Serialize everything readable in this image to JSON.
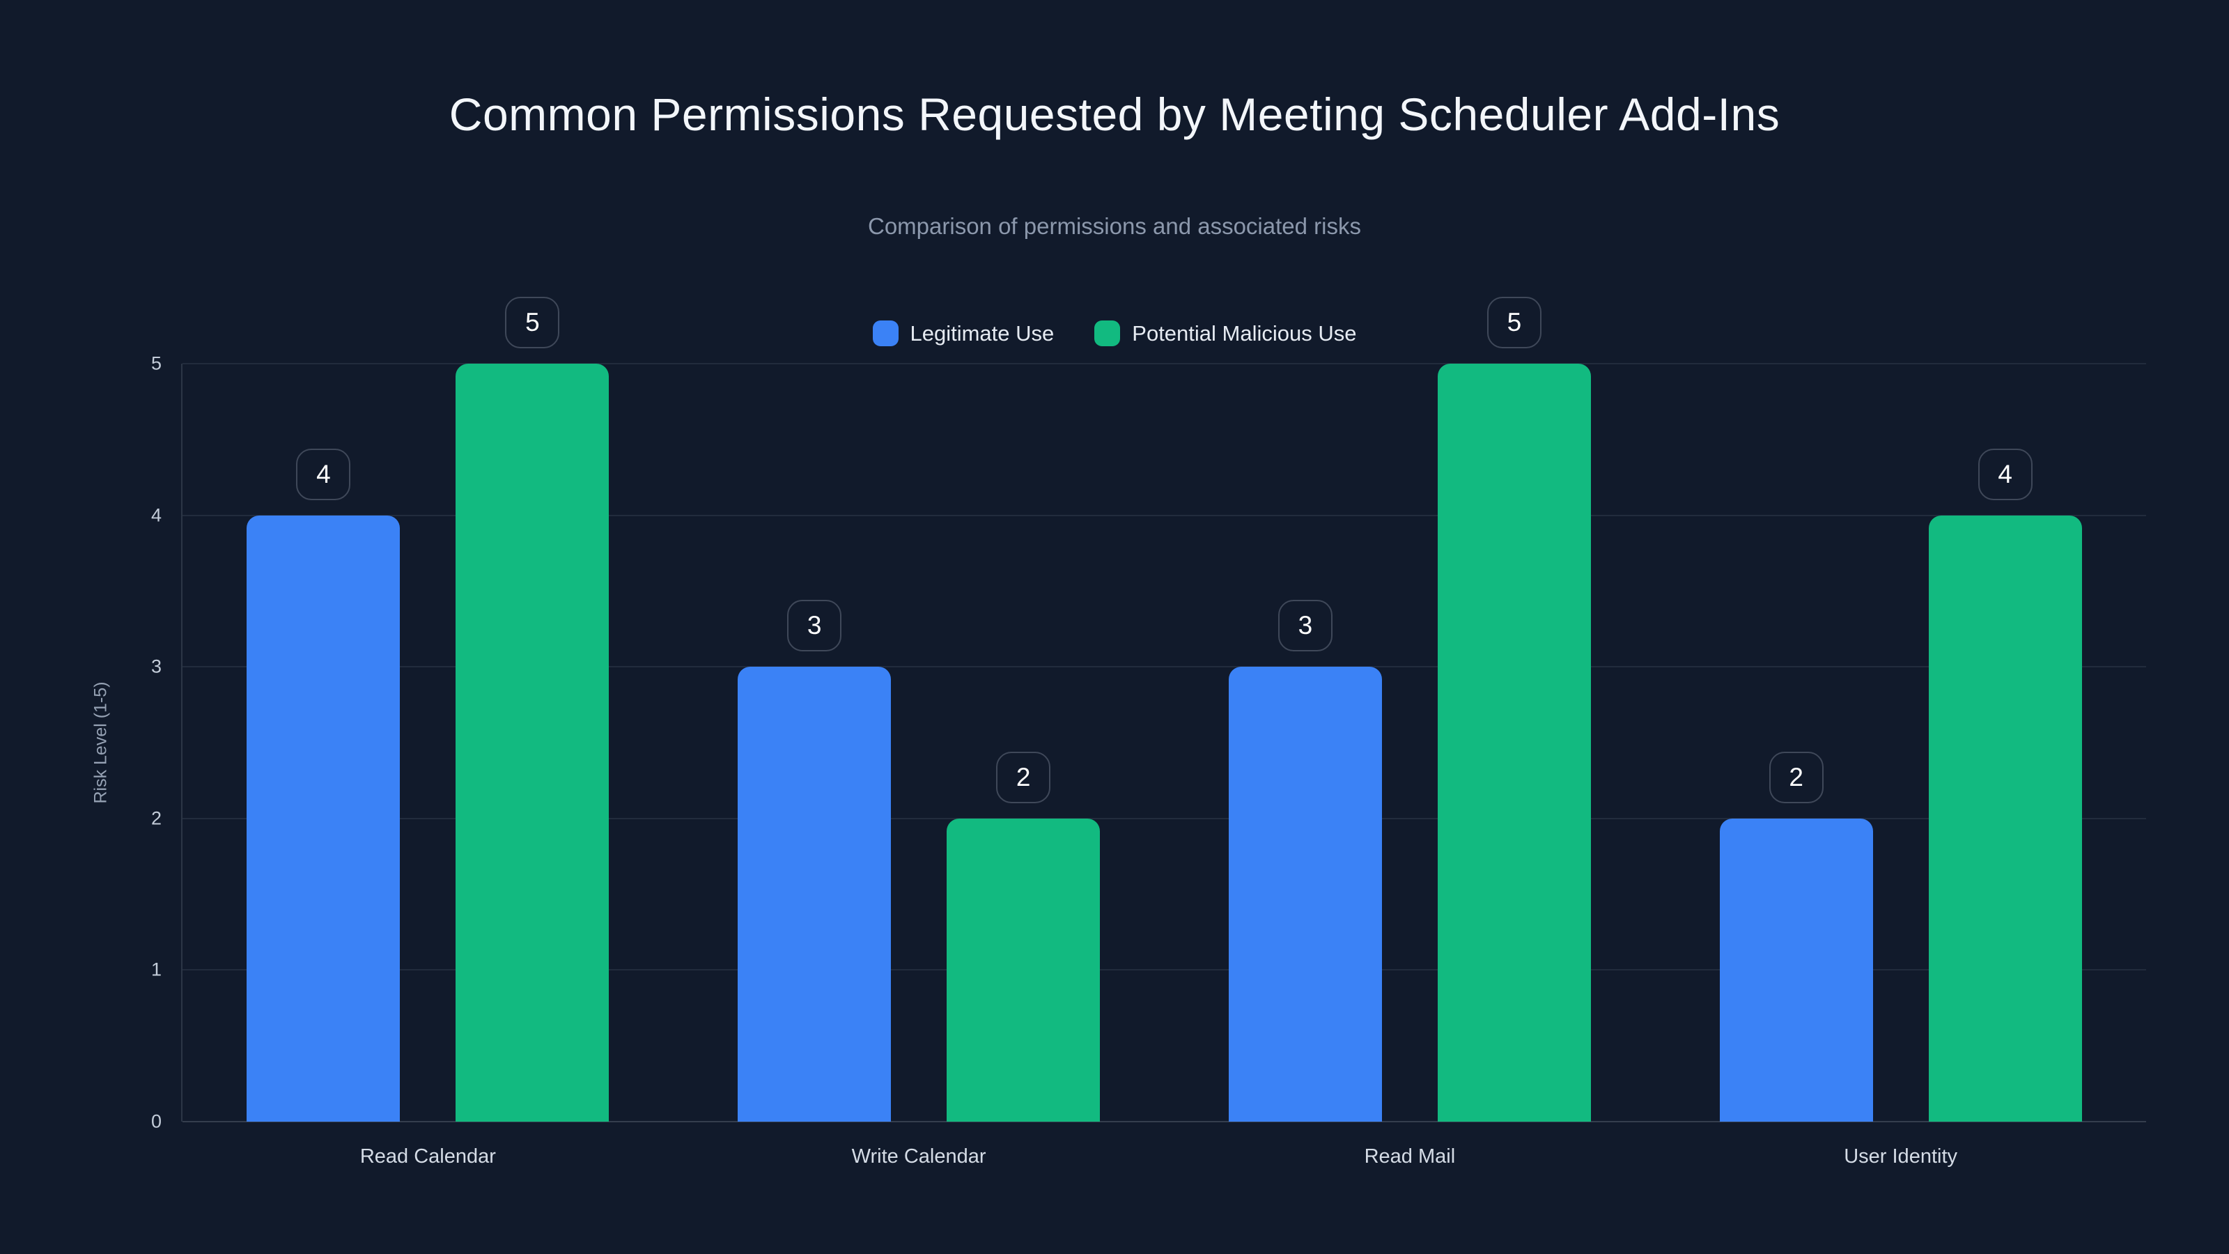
{
  "page": {
    "background": "#111a2b",
    "grid_color": "#222c3d",
    "axis_color": "#353e4e",
    "badge_border_color": "#3f4859",
    "badge_text_color": "#ffffff"
  },
  "chart_data": {
    "type": "bar",
    "title": "Common Permissions Requested by Meeting Scheduler Add-Ins",
    "subtitle": "Comparison of permissions and associated risks",
    "categories": [
      "Read Calendar",
      "Write Calendar",
      "Read Mail",
      "User Identity"
    ],
    "series": [
      {
        "name": "Legitimate Use",
        "color": "#3b82f6",
        "values": [
          4,
          3,
          3,
          2
        ]
      },
      {
        "name": "Potential Malicious Use",
        "color": "#12ba80",
        "values": [
          5,
          2,
          5,
          4
        ]
      }
    ],
    "xlabel": "",
    "ylabel": "Risk Level (1-5)",
    "ylim": [
      0,
      5
    ],
    "yticks": [
      0,
      1,
      2,
      3,
      4,
      5
    ],
    "grid": true,
    "legend_position": "top-center",
    "data_labels": true,
    "data_label_style": "rounded-outline-badge"
  }
}
